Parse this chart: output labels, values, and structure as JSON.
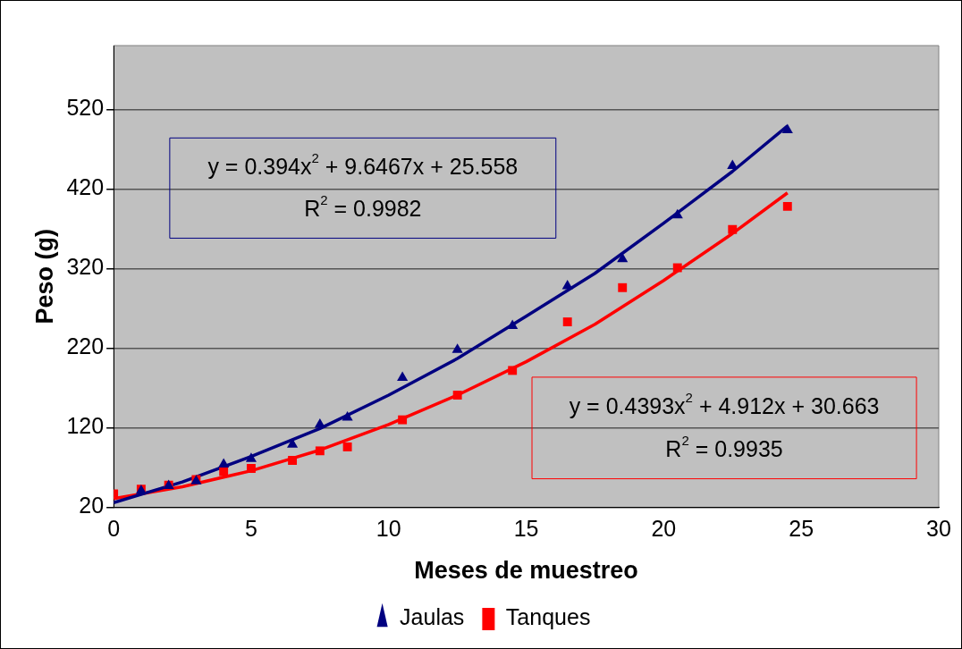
{
  "chart_data": {
    "type": "scatter",
    "xlabel": "Meses de muestreo",
    "ylabel": "Peso (g)",
    "xlim": [
      0,
      30
    ],
    "xticks": [
      0,
      5,
      10,
      15,
      20,
      25,
      30
    ],
    "ylim": [
      20,
      600
    ],
    "yticks": [
      20,
      120,
      220,
      320,
      420,
      520
    ],
    "grid": "y",
    "legend": "bottom",
    "series": [
      {
        "name": "Jaulas",
        "color": "#000080",
        "marker": "triangle",
        "x": [
          1,
          2,
          3,
          4,
          5,
          6.5,
          7.5,
          8.5,
          10.5,
          12.5,
          14.5,
          16.5,
          18.5,
          20.5,
          22.5,
          24.5
        ],
        "values": [
          41,
          47,
          53,
          74,
          81,
          99,
          124,
          133,
          183,
          218,
          248,
          298,
          332,
          387,
          449,
          494
        ]
      },
      {
        "name": "Tanques",
        "color": "#ff0000",
        "marker": "square",
        "x": [
          0,
          1,
          2,
          3,
          4,
          5,
          6.5,
          7.5,
          8.5,
          10.5,
          12.5,
          14.5,
          16.5,
          18.5,
          20.5,
          22.5,
          24.5
        ],
        "values": [
          37,
          43,
          48,
          55,
          65,
          69,
          79,
          91,
          96,
          130,
          161,
          192,
          253,
          296,
          321,
          369,
          398
        ]
      },
      {
        "type": "line",
        "color": "#000080",
        "marker": "none",
        "x": [
          0,
          2.5,
          5,
          7.5,
          10,
          12.5,
          15,
          17.5,
          20,
          22.5,
          24.5
        ],
        "values": [
          26,
          52,
          84,
          119,
          161,
          207,
          260,
          314,
          377,
          442,
          499
        ]
      },
      {
        "type": "line",
        "color": "#ff0000",
        "marker": "none",
        "x": [
          0,
          2.5,
          5,
          7.5,
          10,
          12.5,
          15,
          17.5,
          20,
          22.5,
          24.5
        ],
        "values": [
          31,
          46,
          66,
          92,
          124,
          161,
          203,
          250,
          305,
          364,
          415
        ]
      }
    ],
    "annotations": [
      "y = 0.394x$^{2}$ + 9.6467x + 25.558",
      "R$^{2}$ = 0.9982",
      "y = 0.4393x$^{2}$ + 4.912x + 30.663",
      "R$^{2}$ = 0.9935"
    ]
  }
}
